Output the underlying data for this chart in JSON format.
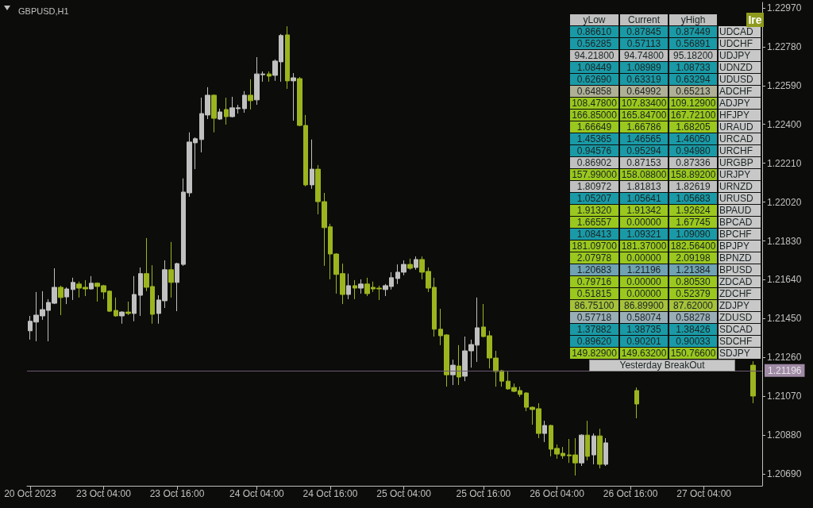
{
  "chart_data": [
    {
      "type": "candlestick",
      "title": "GBPUSD,H1",
      "categories": [
        "20 Oct 2023",
        null,
        null,
        null,
        null,
        null,
        null,
        null,
        null,
        null,
        null,
        null,
        "23 Oct 04:00",
        null,
        null,
        null,
        null,
        null,
        null,
        null,
        null,
        null,
        null,
        null,
        "23 Oct 16:00",
        null,
        null,
        null,
        null,
        null,
        null,
        null,
        null,
        null,
        null,
        null,
        null,
        "24 Oct 04:00",
        null,
        null,
        null,
        null,
        null,
        null,
        null,
        null,
        null,
        null,
        null,
        "24 Oct 16:00",
        null,
        null,
        null,
        null,
        null,
        null,
        null,
        null,
        null,
        null,
        null,
        "25 Oct 04:00",
        null,
        null,
        null,
        null,
        null,
        null,
        null,
        null,
        null,
        null,
        null,
        null,
        "25 Oct 16:00",
        null,
        null,
        null,
        null,
        null,
        null,
        null,
        null,
        null,
        null,
        null,
        "26 Oct 04:00",
        null,
        null,
        null,
        null,
        null,
        null,
        null,
        null,
        null,
        null,
        null,
        "26 Oct 16:00",
        null,
        null,
        null,
        null,
        null,
        null,
        null,
        null,
        null,
        null,
        null,
        "27 Oct 04:00",
        null,
        null,
        null,
        null,
        null,
        null,
        null,
        null,
        null
      ],
      "ohlc": [
        [
          1.2139,
          1.21463,
          1.21347,
          1.21437
        ],
        [
          1.21433,
          1.2158,
          1.21339,
          1.21467
        ],
        [
          1.21463,
          1.21584,
          1.21444,
          1.21494
        ],
        [
          1.2149,
          1.21545,
          1.21339,
          1.21529
        ],
        [
          1.21525,
          1.21696,
          1.21521,
          1.21603
        ],
        [
          1.21603,
          1.21611,
          1.21467,
          1.21553
        ],
        [
          1.21556,
          1.21603,
          1.21521,
          1.21595
        ],
        [
          1.21592,
          1.2165,
          1.21541,
          1.21627
        ],
        [
          1.21619,
          1.21631,
          1.21553,
          1.21599
        ],
        [
          1.21603,
          1.21638,
          1.2156,
          1.21595
        ],
        [
          1.21595,
          1.21658,
          1.21592,
          1.21623
        ],
        [
          1.21623,
          1.21627,
          1.21533,
          1.21607
        ],
        [
          1.21611,
          1.21615,
          1.21545,
          1.2158
        ],
        [
          1.21584,
          1.21588,
          1.21482,
          1.21486
        ],
        [
          1.2149,
          1.21553,
          1.21459,
          1.21463
        ],
        [
          1.21463,
          1.21486,
          1.21425,
          1.21482
        ],
        [
          1.21482,
          1.21533,
          1.21467,
          1.21475
        ],
        [
          1.21475,
          1.21658,
          1.21437,
          1.21568
        ],
        [
          1.21564,
          1.217,
          1.21463,
          1.2167
        ],
        [
          1.2167,
          1.21844,
          1.21584,
          1.21603
        ],
        [
          1.21607,
          1.21711,
          1.21425,
          1.21471
        ],
        [
          1.21475,
          1.21564,
          1.21425,
          1.21541
        ],
        [
          1.21537,
          1.21735,
          1.21502,
          1.21689
        ],
        [
          1.21689,
          1.21825,
          1.21553,
          1.21627
        ],
        [
          1.21627,
          1.21723,
          1.21486,
          1.21719
        ],
        [
          1.21715,
          1.22136,
          1.21708,
          1.22069
        ],
        [
          1.22065,
          1.22361,
          1.22046,
          1.22314
        ],
        [
          1.2231,
          1.22337,
          1.22181,
          1.2233
        ],
        [
          1.22326,
          1.22531,
          1.22263,
          1.22453
        ],
        [
          1.22446,
          1.22582,
          1.22426,
          1.22543
        ],
        [
          1.22543,
          1.22547,
          1.22361,
          1.2243
        ],
        [
          1.22426,
          1.22477,
          1.22422,
          1.22461
        ],
        [
          1.22473,
          1.22531,
          1.22399,
          1.22438
        ],
        [
          1.22438,
          1.22535,
          1.22434,
          1.22481
        ],
        [
          1.22477,
          1.22496,
          1.22453,
          1.22481
        ],
        [
          1.22477,
          1.22563,
          1.22457,
          1.22543
        ],
        [
          1.22543,
          1.22621,
          1.22473,
          1.22516
        ],
        [
          1.2252,
          1.22729,
          1.22496,
          1.22647
        ],
        [
          1.22643,
          1.22659,
          1.22609,
          1.22647
        ],
        [
          1.22647,
          1.22659,
          1.22609,
          1.22636
        ],
        [
          1.2264,
          1.22718,
          1.22613,
          1.2271
        ],
        [
          1.22706,
          1.22842,
          1.22609,
          1.22835
        ],
        [
          1.22838,
          1.2288,
          1.22574,
          1.22613
        ],
        [
          1.22613,
          1.22651,
          1.22418,
          1.22628
        ],
        [
          1.22624,
          1.22632,
          1.22391,
          1.22395
        ],
        [
          1.22395,
          1.22446,
          1.22097,
          1.22104
        ],
        [
          1.22104,
          1.22326,
          1.22085,
          1.22181
        ],
        [
          1.22181,
          1.22201,
          1.2196,
          1.22022
        ],
        [
          1.22022,
          1.22065,
          1.21708,
          1.21895
        ],
        [
          1.21899,
          1.21914,
          1.21642,
          1.21766
        ],
        [
          1.21766,
          1.2177,
          1.21572,
          1.21666
        ],
        [
          1.2167,
          1.21719,
          1.21521,
          1.21568
        ],
        [
          1.21568,
          1.2167,
          1.21545,
          1.21611
        ],
        [
          1.21611,
          1.21638,
          1.21545,
          1.21599
        ],
        [
          1.21599,
          1.21642,
          1.21572,
          1.21619
        ],
        [
          1.21619,
          1.2165,
          1.2156,
          1.21572
        ],
        [
          1.21603,
          1.21631,
          1.2158,
          1.21595
        ],
        [
          1.21599,
          1.21611,
          1.21541,
          1.21595
        ],
        [
          1.21592,
          1.21619,
          1.2156,
          1.21611
        ],
        [
          1.21607,
          1.21677,
          1.21592,
          1.2165
        ],
        [
          1.21646,
          1.21715,
          1.21619,
          1.21677
        ],
        [
          1.21677,
          1.21735,
          1.21662,
          1.21715
        ],
        [
          1.21715,
          1.21743,
          1.21689,
          1.21696
        ],
        [
          1.217,
          1.21754,
          1.21689,
          1.21739
        ],
        [
          1.21739,
          1.21754,
          1.21642,
          1.21677
        ],
        [
          1.21681,
          1.217,
          1.2158,
          1.21599
        ],
        [
          1.21603,
          1.2165,
          1.21362,
          1.21398
        ],
        [
          1.21398,
          1.21498,
          1.2132,
          1.21366
        ],
        [
          1.2137,
          1.21374,
          1.21117,
          1.21175
        ],
        [
          1.21175,
          1.21249,
          1.21125,
          1.21222
        ],
        [
          1.21218,
          1.2132,
          1.21125,
          1.21164
        ],
        [
          1.21168,
          1.21362,
          1.21144,
          1.21292
        ],
        [
          1.21292,
          1.21347,
          1.2121,
          1.21323
        ],
        [
          1.2132,
          1.21553,
          1.21238,
          1.21405
        ],
        [
          1.21409,
          1.21521,
          1.21359,
          1.21362
        ],
        [
          1.21366,
          1.2139,
          1.21206,
          1.21257
        ],
        [
          1.21257,
          1.21292,
          1.21117,
          1.21191
        ],
        [
          1.21195,
          1.21199,
          1.21117,
          1.21144
        ],
        [
          1.21144,
          1.21191,
          1.21102,
          1.21106
        ],
        [
          1.21113,
          1.21132,
          1.2109,
          1.21094
        ],
        [
          1.21098,
          1.21117,
          1.21067,
          1.21079
        ],
        [
          1.21086,
          1.2109,
          1.20997,
          1.21016
        ],
        [
          1.21016,
          1.2102,
          1.20931,
          1.21005
        ],
        [
          1.21009,
          1.21036,
          1.20865,
          1.20888
        ],
        [
          1.20888,
          1.2095,
          1.20846,
          1.20927
        ],
        [
          1.20927,
          1.20931,
          1.20776,
          1.20811
        ],
        [
          1.20815,
          1.20834,
          1.20764,
          1.20787
        ],
        [
          1.20791,
          1.20822,
          1.20764,
          1.20779
        ],
        [
          1.20783,
          1.20861,
          1.20744,
          1.20779
        ],
        [
          1.20783,
          1.20865,
          1.20682,
          1.20744
        ],
        [
          1.20744,
          1.20884,
          1.20729,
          1.2088
        ],
        [
          1.2088,
          1.2095,
          1.20756,
          1.20776
        ],
        [
          1.20783,
          1.20888,
          1.20737,
          1.20876
        ],
        [
          1.20876,
          1.20911,
          1.20717,
          1.20737
        ],
        [
          1.20737,
          1.20865,
          1.20729,
          1.20842
        ],
        null,
        null,
        null,
        null,
        [
          1.21098,
          1.21113,
          1.20962,
          1.21032
        ],
        null,
        null,
        null,
        null,
        null,
        null,
        null,
        null,
        null,
        null,
        null,
        null,
        null,
        null,
        null,
        null,
        null,
        null,
        [
          1.21222,
          1.21241,
          1.21036,
          1.21071
        ],
        null
      ],
      "colors": [
        "#c0c0c0",
        "#c0c0c0",
        "#c0c0c0",
        "#c0c0c0",
        "#c0c0c0",
        "#9cb41e",
        "#c0c0c0",
        "#c0c0c0",
        "#9cb41e",
        "#9cb41e",
        "#c0c0c0",
        "#9cb41e",
        "#9cb41e",
        "#9cb41e",
        "#9cb41e",
        "#c0c0c0",
        "#9cb41e",
        "#c0c0c0",
        "#c0c0c0",
        "#9cb41e",
        "#9cb41e",
        "#c0c0c0",
        "#c0c0c0",
        "#9cb41e",
        "#c0c0c0",
        "#c0c0c0",
        "#c0c0c0",
        "#c0c0c0",
        "#c0c0c0",
        "#c0c0c0",
        "#9cb41e",
        "#c0c0c0",
        "#9cb41e",
        "#c0c0c0",
        "#c0c0c0",
        "#c0c0c0",
        "#9cb41e",
        "#c0c0c0",
        "#c0c0c0",
        "#9cb41e",
        "#c0c0c0",
        "#c0c0c0",
        "#9cb41e",
        "#c0c0c0",
        "#9cb41e",
        "#9cb41e",
        "#c0c0c0",
        "#9cb41e",
        "#9cb41e",
        "#9cb41e",
        "#9cb41e",
        "#9cb41e",
        "#c0c0c0",
        "#9cb41e",
        "#c0c0c0",
        "#9cb41e",
        "#9cb41e",
        "#9cb41e",
        "#c0c0c0",
        "#c0c0c0",
        "#c0c0c0",
        "#c0c0c0",
        "#9cb41e",
        "#c0c0c0",
        "#9cb41e",
        "#9cb41e",
        "#9cb41e",
        "#9cb41e",
        "#9cb41e",
        "#c0c0c0",
        "#9cb41e",
        "#c0c0c0",
        "#c0c0c0",
        "#c0c0c0",
        "#9cb41e",
        "#9cb41e",
        "#9cb41e",
        "#9cb41e",
        "#9cb41e",
        "#9cb41e",
        "#9cb41e",
        "#9cb41e",
        "#9cb41e",
        "#9cb41e",
        "#c0c0c0",
        "#9cb41e",
        "#9cb41e",
        "#9cb41e",
        "#9cb41e",
        "#9cb41e",
        "#c0c0c0",
        "#9cb41e",
        "#c0c0c0",
        "#9cb41e",
        "#c0c0c0",
        null,
        null,
        null,
        null,
        "#9cb41e",
        null,
        null,
        null,
        null,
        null,
        null,
        null,
        null,
        null,
        null,
        null,
        null,
        null,
        null,
        null,
        null,
        null,
        null,
        "#9cb41e",
        null
      ],
      "ylim": [
        1.20632,
        1.22997
      ],
      "yticks": [
        {
          "value": 1.2069,
          "label": "1.20690"
        },
        {
          "value": 1.2088,
          "label": "1.20880"
        },
        {
          "value": 1.2107,
          "label": "1.21070"
        },
        {
          "value": 1.2126,
          "label": "1.21260"
        },
        {
          "value": 1.2145,
          "label": "1.21450"
        },
        {
          "value": 1.2164,
          "label": "1.21640"
        },
        {
          "value": 1.2183,
          "label": "1.21830"
        },
        {
          "value": 1.2202,
          "label": "1.22020"
        },
        {
          "value": 1.2221,
          "label": "1.22210"
        },
        {
          "value": 1.224,
          "label": "1.22400"
        },
        {
          "value": 1.2259,
          "label": "1.22590"
        },
        {
          "value": 1.2278,
          "label": "1.22780"
        },
        {
          "value": 1.2297,
          "label": "1.22970"
        }
      ],
      "ref_lines": [
        {
          "axis": "y",
          "value": 1.21196,
          "label": "1.21196",
          "color": "#6e5870"
        }
      ]
    },
    {
      "type": "other",
      "categories": [
        "yLow",
        "Current",
        "yHigh",
        null
      ],
      "y_categories": [
        "UDCAD",
        "UDCHF",
        "UDJPY",
        "UDNZD",
        "UDUSD",
        "ADCHF",
        "ADJPY",
        "HFJPY",
        "URAUD",
        "URCAD",
        "URCHF",
        "URGBP",
        "URJPY",
        "URNZD",
        "URUSD",
        "BPAUD",
        "BPCAD",
        "BPCHF",
        "BPJPY",
        "BPNZD",
        "BPUSD",
        "ZDCAD",
        "ZDCHF",
        "ZDJPY",
        "ZDUSD",
        "SDCAD",
        "SDCHF",
        "SDJPY"
      ],
      "cell_labels": [
        [
          "0.86610",
          "0.87845",
          "0.87449"
        ],
        [
          "0.56285",
          "0.57113",
          "0.56891"
        ],
        [
          "94.21800",
          "94.74800",
          "95.18200"
        ],
        [
          "1.08449",
          "1.08989",
          "1.08733"
        ],
        [
          "0.62690",
          "0.63319",
          "0.63294"
        ],
        [
          "0.64858",
          "0.64992",
          "0.65213"
        ],
        [
          "108.47800",
          "107.83400",
          "109.12900"
        ],
        [
          "166.85000",
          "165.84700",
          "167.72100"
        ],
        [
          "1.66649",
          "1.66786",
          "1.68205"
        ],
        [
          "1.45365",
          "1.46565",
          "1.46050"
        ],
        [
          "0.94576",
          "0.95294",
          "0.94980"
        ],
        [
          "0.86902",
          "0.87153",
          "0.87336"
        ],
        [
          "157.99000",
          "158.08800",
          "158.89200"
        ],
        [
          "1.80972",
          "1.81813",
          "1.82619"
        ],
        [
          "1.05207",
          "1.05641",
          "1.05683"
        ],
        [
          "1.91320",
          "1.91342",
          "1.92624"
        ],
        [
          "1.66557",
          "0.00000",
          "1.67745"
        ],
        [
          "1.08413",
          "1.09321",
          "1.09090"
        ],
        [
          "181.09700",
          "181.37000",
          "182.56400"
        ],
        [
          "2.07978",
          "0.00000",
          "2.09198"
        ],
        [
          "1.20683",
          "1.21196",
          "1.21384"
        ],
        [
          "0.79716",
          "0.00000",
          "0.80530"
        ],
        [
          "0.51815",
          "0.00000",
          "0.52379"
        ],
        [
          "86.75100",
          "86.89900",
          "87.62000"
        ],
        [
          "0.57718",
          "0.58074",
          "0.58278"
        ],
        [
          "1.37882",
          "1.38735",
          "1.38426"
        ],
        [
          "0.89620",
          "0.90201",
          "0.90033"
        ],
        [
          "149.82900",
          "149.63200",
          "150.76600"
        ]
      ],
      "colors": [
        "#1a9aa6",
        "#1a9aa6",
        "#c0c0c0",
        "#1a9aa6",
        "#1a9aa6",
        "#b0b096",
        "#9ac81e",
        "#9ac81e",
        "#9ac81e",
        "#1a9aa6",
        "#1a9aa6",
        "#c0c0c0",
        "#9ac81e",
        "#c0c0c0",
        "#1a9aa6",
        "#9ac81e",
        "#9ac81e",
        "#1a9aa6",
        "#9ac81e",
        "#9ac81e",
        "#6fa2b2",
        "#9ac81e",
        "#9ac81e",
        "#a6c23a",
        "#9aaeb6",
        "#1a9aa6",
        "#1a9aa6",
        "#9ac81e"
      ],
      "annotations": [
        "Yesterday BreakOut",
        "Ire"
      ]
    }
  ]
}
